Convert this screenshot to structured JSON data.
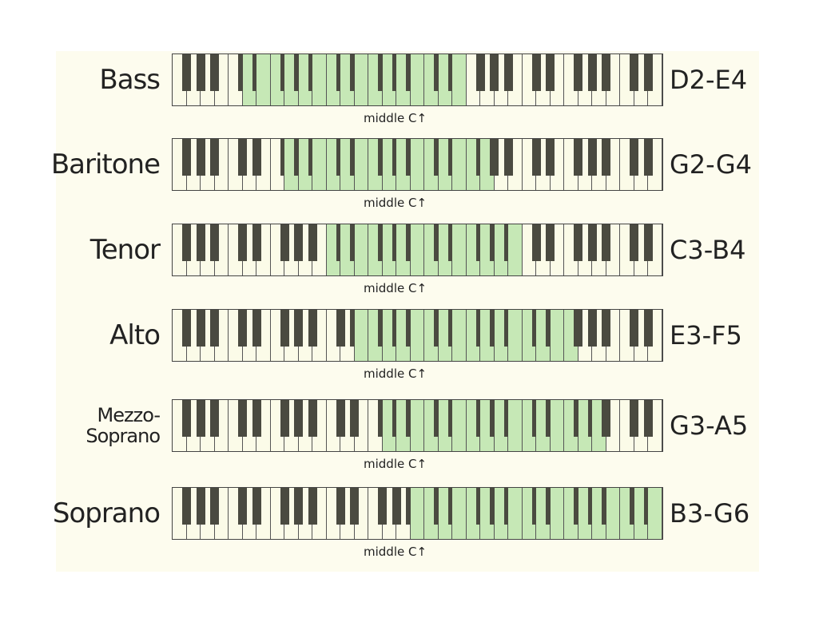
{
  "colors": {
    "highlight": "#c6e8b6",
    "white_key": "#fbfbe8",
    "black_key": "#4a4a40",
    "background": "#fdfcee"
  },
  "keyboard": {
    "lowest_note": "F1",
    "white_keys": 35
  },
  "middle_c_label": "middle C↑",
  "voices": [
    {
      "name": "Bass",
      "range": "D2-E4",
      "low": "D2",
      "high": "E4"
    },
    {
      "name": "Baritone",
      "range": "G2-G4",
      "low": "G2",
      "high": "G4"
    },
    {
      "name": "Tenor",
      "range": "C3-B4",
      "low": "C3",
      "high": "B4"
    },
    {
      "name": "Alto",
      "range": "E3-F5",
      "low": "E3",
      "high": "F5"
    },
    {
      "name": "Mezzo-\nSoprano",
      "range": "G3-A5",
      "low": "G3",
      "high": "A5"
    },
    {
      "name": "Soprano",
      "range": "B3-G6",
      "low": "B3",
      "high": "G6"
    }
  ]
}
